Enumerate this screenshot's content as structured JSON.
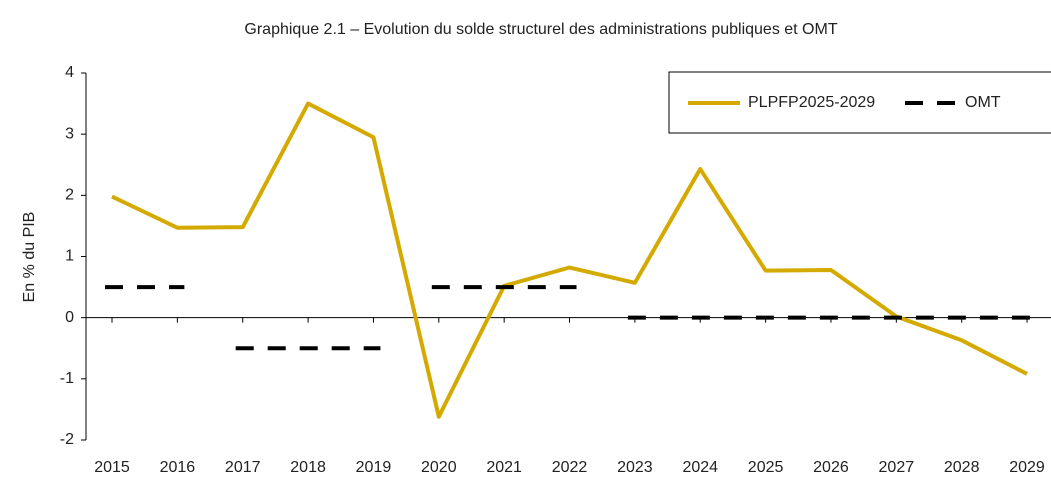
{
  "chart_data": {
    "type": "line",
    "title": "Graphique 2.1 – Evolution du solde structurel des administrations publiques et OMT",
    "ylabel": "En % du PIB",
    "categories": [
      "2015",
      "2016",
      "2017",
      "2018",
      "2019",
      "2020",
      "2021",
      "2022",
      "2023",
      "2024",
      "2025",
      "2026",
      "2027",
      "2028",
      "2029"
    ],
    "series": [
      {
        "name": "PLPFP2025-2029",
        "color": "#d4a900",
        "style": "solid",
        "values": [
          1.98,
          1.47,
          1.48,
          3.5,
          2.95,
          -1.62,
          0.52,
          0.82,
          0.57,
          2.43,
          0.77,
          0.78,
          0.02,
          -0.37,
          -0.92
        ]
      },
      {
        "name": "OMT",
        "color": "#000000",
        "style": "dashed",
        "values": [
          0.5,
          0.5,
          -0.5,
          -0.5,
          -0.5,
          0.5,
          0.5,
          0.5,
          0,
          0,
          0,
          0,
          0,
          0,
          0
        ]
      }
    ],
    "ylim": [
      -2,
      4
    ],
    "yticks": [
      -2,
      -1,
      0,
      1,
      2,
      3,
      4
    ],
    "legend": "upper right"
  }
}
